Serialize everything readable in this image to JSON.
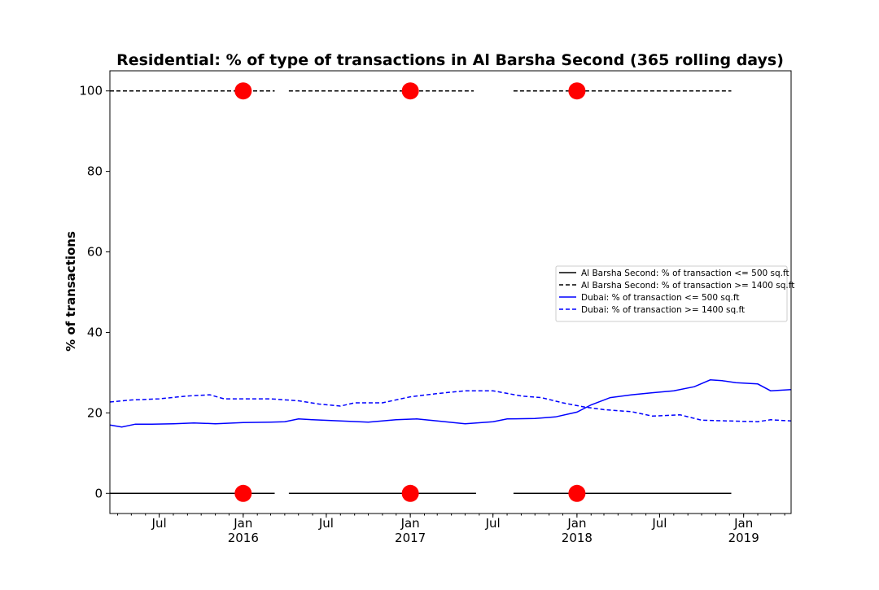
{
  "chart_data": {
    "type": "line",
    "title": "Residential: % of type of transactions in Al Barsha Second (365 rolling days)",
    "xlabel": "",
    "ylabel": "% of transactions",
    "xlim": [
      "2015-03-15",
      "2019-04-15"
    ],
    "ylim": [
      -5,
      105
    ],
    "y_ticks": [
      0,
      20,
      40,
      60,
      80,
      100
    ],
    "x_ticks": [
      {
        "date": "2015-07-01",
        "label": "Jul",
        "sublabel": ""
      },
      {
        "date": "2016-01-01",
        "label": "Jan",
        "sublabel": "2016"
      },
      {
        "date": "2016-07-01",
        "label": "Jul",
        "sublabel": ""
      },
      {
        "date": "2017-01-01",
        "label": "Jan",
        "sublabel": "2017"
      },
      {
        "date": "2017-07-01",
        "label": "Jul",
        "sublabel": ""
      },
      {
        "date": "2018-01-01",
        "label": "Jan",
        "sublabel": "2018"
      },
      {
        "date": "2018-07-01",
        "label": "Jul",
        "sublabel": ""
      },
      {
        "date": "2019-01-01",
        "label": "Jan",
        "sublabel": "2019"
      }
    ],
    "grid": false,
    "legend_position": "center-right",
    "series": [
      {
        "name": "Al Barsha Second: % of transaction <= 500 sq.ft",
        "color": "#000000",
        "dash": "solid",
        "segments": [
          [
            [
              "2015-03-15",
              0
            ],
            [
              "2016-03-10",
              0
            ]
          ],
          [
            [
              "2016-04-10",
              0
            ],
            [
              "2017-05-25",
              0
            ]
          ],
          [
            [
              "2017-08-15",
              0
            ],
            [
              "2018-12-05",
              0
            ]
          ]
        ]
      },
      {
        "name": "Al Barsha Second: % of transaction >= 1400 sq.ft",
        "color": "#000000",
        "dash": "dashed",
        "segments": [
          [
            [
              "2015-03-15",
              100
            ],
            [
              "2016-03-10",
              100
            ]
          ],
          [
            [
              "2016-04-10",
              100
            ],
            [
              "2017-05-20",
              100
            ]
          ],
          [
            [
              "2017-08-15",
              100
            ],
            [
              "2018-12-05",
              100
            ]
          ]
        ]
      },
      {
        "name": "Dubai: % of transaction <= 500 sq.ft",
        "color": "#0000ff",
        "dash": "solid",
        "segments": [
          [
            [
              "2015-03-15",
              17.0
            ],
            [
              "2015-04-10",
              16.5
            ],
            [
              "2015-05-10",
              17.2
            ],
            [
              "2015-06-15",
              17.2
            ],
            [
              "2015-08-01",
              17.3
            ],
            [
              "2015-09-15",
              17.5
            ],
            [
              "2015-11-01",
              17.3
            ],
            [
              "2016-01-01",
              17.6
            ],
            [
              "2016-03-01",
              17.7
            ],
            [
              "2016-04-01",
              17.8
            ],
            [
              "2016-05-01",
              18.5
            ],
            [
              "2016-06-01",
              18.3
            ],
            [
              "2016-08-01",
              18.0
            ],
            [
              "2016-10-01",
              17.7
            ],
            [
              "2016-12-01",
              18.3
            ],
            [
              "2017-01-15",
              18.5
            ],
            [
              "2017-03-01",
              18.0
            ],
            [
              "2017-05-01",
              17.3
            ],
            [
              "2017-07-01",
              17.8
            ],
            [
              "2017-08-01",
              18.5
            ],
            [
              "2017-10-01",
              18.6
            ],
            [
              "2017-11-15",
              19.0
            ],
            [
              "2018-01-01",
              20.2
            ],
            [
              "2018-02-01",
              22.0
            ],
            [
              "2018-03-15",
              23.8
            ],
            [
              "2018-05-01",
              24.5
            ],
            [
              "2018-06-15",
              25.0
            ],
            [
              "2018-08-01",
              25.5
            ],
            [
              "2018-09-15",
              26.5
            ],
            [
              "2018-10-20",
              28.2
            ],
            [
              "2018-11-15",
              28.0
            ],
            [
              "2018-12-15",
              27.5
            ],
            [
              "2019-02-01",
              27.2
            ],
            [
              "2019-03-01",
              25.5
            ],
            [
              "2019-04-15",
              25.8
            ]
          ]
        ]
      },
      {
        "name": "Dubai: % of transaction >= 1400 sq.ft",
        "color": "#0000ff",
        "dash": "dashed",
        "segments": [
          [
            [
              "2015-03-15",
              22.7
            ],
            [
              "2015-05-01",
              23.2
            ],
            [
              "2015-07-01",
              23.5
            ],
            [
              "2015-09-01",
              24.2
            ],
            [
              "2015-10-20",
              24.5
            ],
            [
              "2015-11-20",
              23.5
            ],
            [
              "2016-01-01",
              23.5
            ],
            [
              "2016-03-01",
              23.5
            ],
            [
              "2016-05-01",
              23.0
            ],
            [
              "2016-06-15",
              22.2
            ],
            [
              "2016-08-01",
              21.7
            ],
            [
              "2016-09-01",
              22.5
            ],
            [
              "2016-11-01",
              22.5
            ],
            [
              "2017-01-01",
              24.0
            ],
            [
              "2017-03-01",
              24.8
            ],
            [
              "2017-05-01",
              25.5
            ],
            [
              "2017-07-01",
              25.5
            ],
            [
              "2017-09-01",
              24.2
            ],
            [
              "2017-10-15",
              23.8
            ],
            [
              "2017-12-01",
              22.5
            ],
            [
              "2018-01-15",
              21.5
            ],
            [
              "2018-03-01",
              20.8
            ],
            [
              "2018-05-01",
              20.3
            ],
            [
              "2018-06-15",
              19.2
            ],
            [
              "2018-08-15",
              19.5
            ],
            [
              "2018-10-01",
              18.2
            ],
            [
              "2018-12-01",
              18.0
            ],
            [
              "2019-02-01",
              17.8
            ],
            [
              "2019-03-01",
              18.3
            ],
            [
              "2019-04-15",
              18.0
            ]
          ]
        ]
      }
    ],
    "markers": {
      "color": "#ff0000",
      "points": [
        [
          "2016-01-01",
          100
        ],
        [
          "2017-01-01",
          100
        ],
        [
          "2018-01-01",
          100
        ],
        [
          "2016-01-01",
          0
        ],
        [
          "2017-01-01",
          0
        ],
        [
          "2018-01-01",
          0
        ]
      ]
    }
  }
}
